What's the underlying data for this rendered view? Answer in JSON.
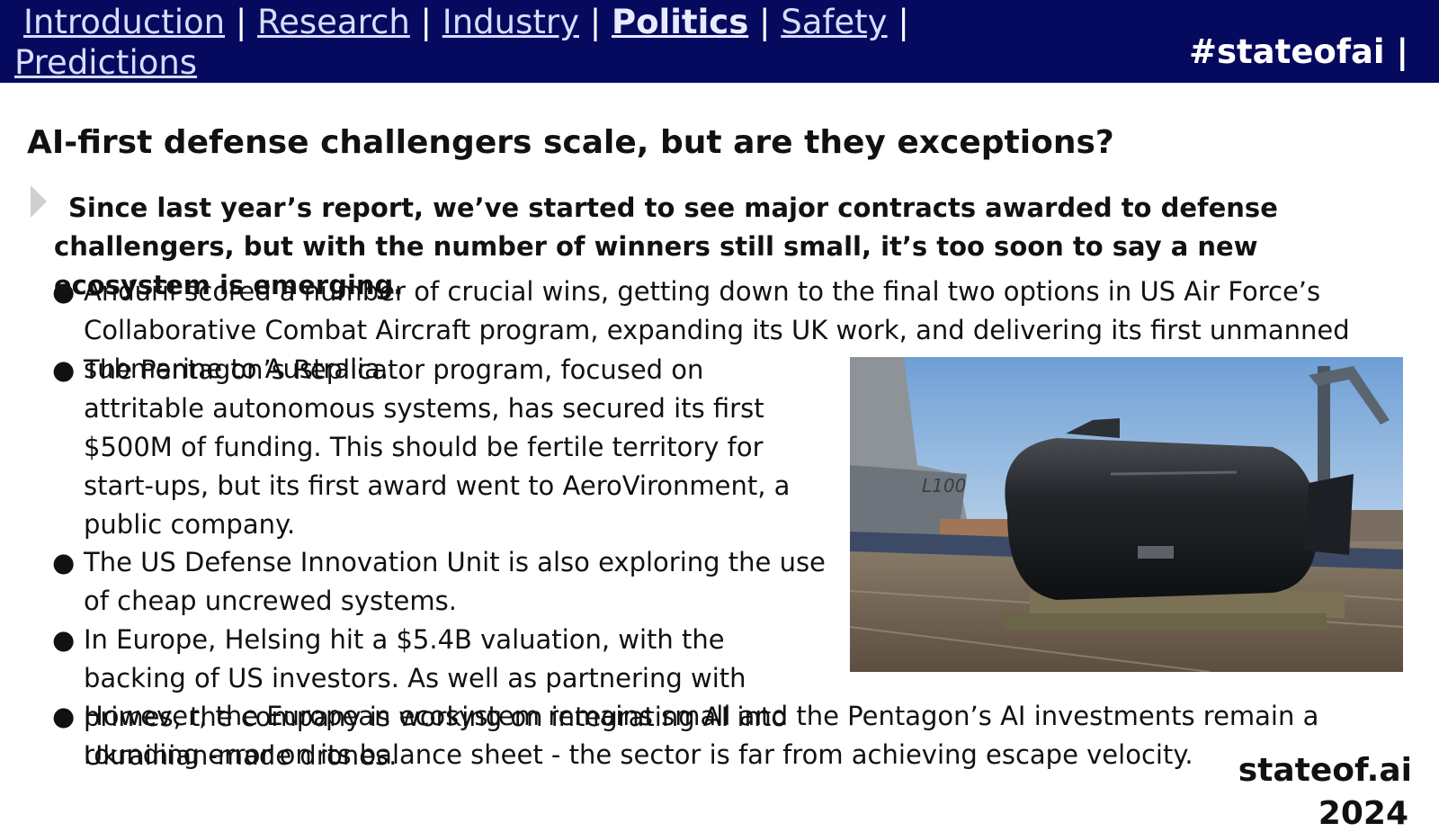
{
  "nav": {
    "items": [
      {
        "label": "Introduction",
        "active": false
      },
      {
        "label": "Research",
        "active": false
      },
      {
        "label": "Industry",
        "active": false
      },
      {
        "label": "Politics",
        "active": true
      },
      {
        "label": "Safety",
        "active": false
      },
      {
        "label": "Predictions",
        "active": false
      }
    ],
    "separator": "|",
    "hashtag": "#stateofai |"
  },
  "slide": {
    "title": "AI-first defense challengers scale, but are they exceptions?",
    "lead": "Since last year’s report, we’ve started to see major contracts awarded to defense challengers, but with the number of winners still small, it’s too soon to say a new ecosystem is emerging.",
    "bullet_glyph": "●",
    "bullets": [
      "Anduril scored a number of crucial wins, getting down to the final two options in US Air Force’s Collaborative Combat Aircraft program, expanding its UK work, and delivering its first unmanned submarine to Australia.",
      "The Pentagon’s Replicator program, focused on attritable autonomous systems, has secured its first $500M of funding. This should be fertile territory for start-ups, but its first award went to AeroVironment, a public company.",
      "The US Defense Innovation Unit is also exploring the use of cheap uncrewed systems.",
      "In Europe, Helsing hit a $5.4B valuation, with the backing of US investors. As well as partnering with primes, the company is working on integrating AI into Ukrainian-made drones.",
      "However, the European ecosystem remains small and the Pentagon’s AI investments remain a rounding error on its balance sheet - the sector is far from achieving escape velocity."
    ],
    "image_label": "L100"
  },
  "footer": {
    "site": "stateof.ai",
    "year": "2024"
  },
  "colors": {
    "header_bg": "#050a5e",
    "link": "#d8dcff",
    "text": "#111111"
  }
}
